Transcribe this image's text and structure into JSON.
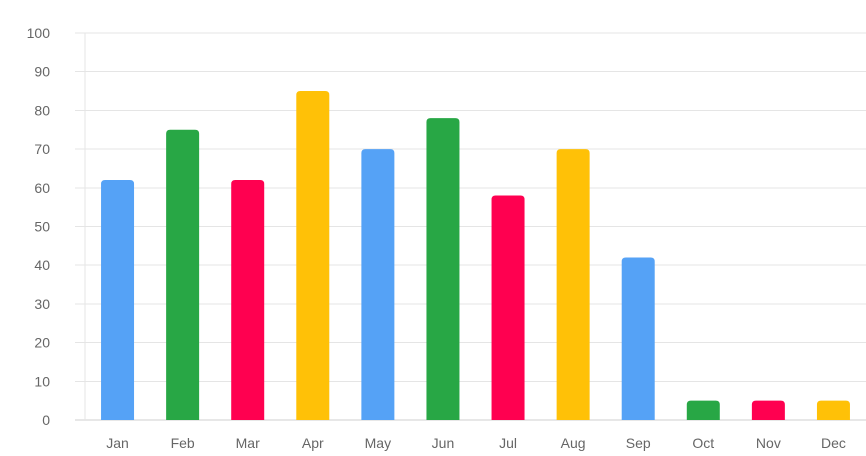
{
  "chart_data": {
    "type": "bar",
    "categories": [
      "Jan",
      "Feb",
      "Mar",
      "Apr",
      "May",
      "Jun",
      "Jul",
      "Aug",
      "Sep",
      "Oct",
      "Nov",
      "Dec"
    ],
    "values": [
      62,
      75,
      62,
      85,
      70,
      78,
      58,
      70,
      42,
      5,
      5,
      5
    ],
    "ylim": [
      0,
      100
    ],
    "yticks": [
      "0",
      "10",
      "20",
      "30",
      "40",
      "50",
      "60",
      "70",
      "80",
      "90",
      "100"
    ],
    "colors": [
      "#55a2f6",
      "#28a745",
      "#ff0050",
      "#ffc107",
      "#55a2f6",
      "#28a745",
      "#ff0050",
      "#ffc107",
      "#55a2f6",
      "#28a745",
      "#ff0050",
      "#ffc107"
    ],
    "grid": true,
    "legend": "none"
  },
  "colors": {
    "grid": "#e5e5e5",
    "axis": "#cfcfcf",
    "tick_text": "#666666",
    "background": "#ffffff"
  }
}
